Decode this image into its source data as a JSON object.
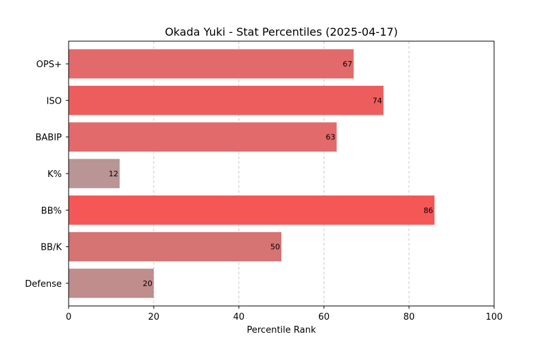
{
  "chart_data": {
    "type": "bar",
    "orientation": "horizontal",
    "title": "Okada Yuki - Stat Percentiles (2025-04-17)",
    "xlabel": "Percentile Rank",
    "ylabel": "",
    "xlim": [
      0,
      100
    ],
    "xticks": [
      0,
      20,
      40,
      60,
      80,
      100
    ],
    "grid": "vertical-dashed",
    "categories": [
      "OPS+",
      "ISO",
      "BABIP",
      "K%",
      "BB%",
      "BB/K",
      "Defense"
    ],
    "values": [
      67,
      74,
      63,
      12,
      86,
      50,
      20
    ],
    "data_labels": [
      "67",
      "74",
      "63",
      "12",
      "86",
      "50",
      "20"
    ],
    "bar_colors": [
      "#e36a6a",
      "#ee5d5d",
      "#e36a6a",
      "#b99595",
      "#f55757",
      "#d67373",
      "#c08c8c"
    ],
    "grid_color": "#c8c8c8"
  }
}
